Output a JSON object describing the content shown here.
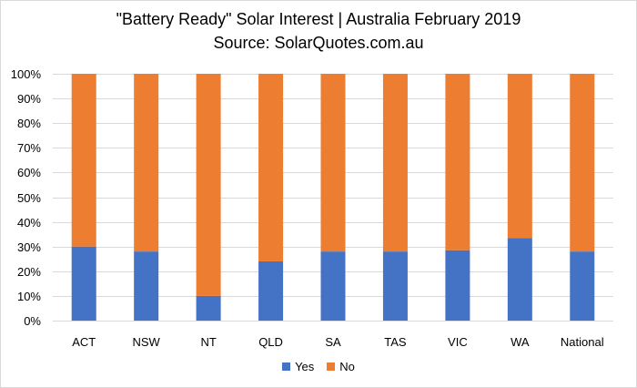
{
  "title": "\"Battery Ready\" Solar Interest | Australia February 2019",
  "subtitle": "Source: SolarQuotes.com.au",
  "chart_data": {
    "type": "bar",
    "stacked": true,
    "percent_axis": true,
    "categories": [
      "ACT",
      "NSW",
      "NT",
      "QLD",
      "SA",
      "TAS",
      "VIC",
      "WA",
      "National"
    ],
    "series": [
      {
        "name": "Yes",
        "color": "#4472c4",
        "values": [
          30,
          28,
          10,
          24,
          28,
          28,
          28.5,
          33.5,
          28
        ]
      },
      {
        "name": "No",
        "color": "#ed7d31",
        "values": [
          70,
          72,
          90,
          76,
          72,
          72,
          71.5,
          66.5,
          72
        ]
      }
    ],
    "ylim": [
      0,
      100
    ],
    "y_ticks": [
      "0%",
      "10%",
      "20%",
      "30%",
      "40%",
      "50%",
      "60%",
      "70%",
      "80%",
      "90%",
      "100%"
    ],
    "grid": true,
    "legend_position": "bottom",
    "xlabel": "",
    "ylabel": ""
  }
}
